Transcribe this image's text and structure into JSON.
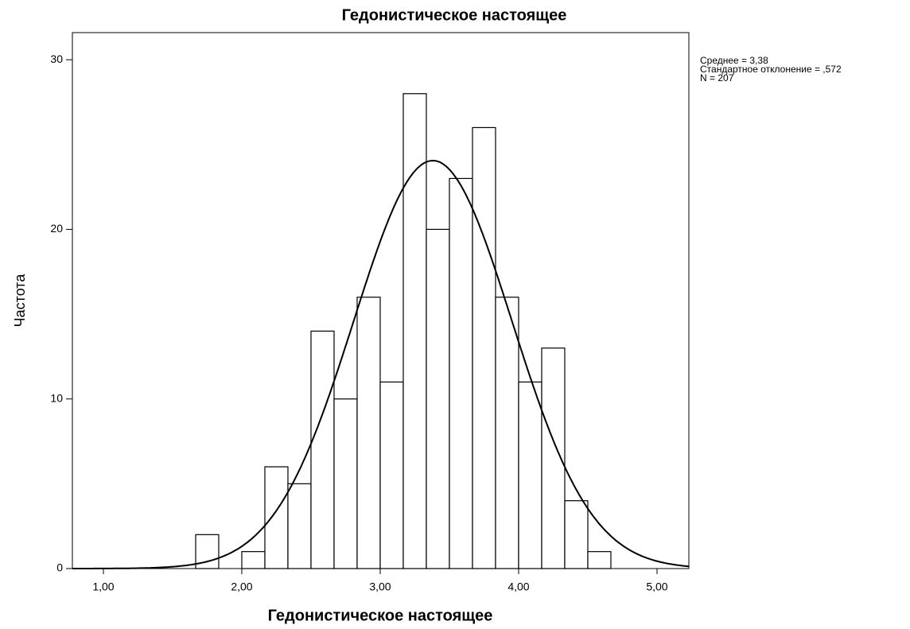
{
  "chart_data": {
    "type": "histogram",
    "title": "Гедонистическое настоящее",
    "x_label": "Гедонистическое настоящее",
    "y_label": "Частота",
    "bins": [
      1.6667,
      1.8333,
      2.0,
      2.1667,
      2.3333,
      2.5,
      2.6667,
      2.8333,
      3.0,
      3.1667,
      3.3333,
      3.5,
      3.6667,
      3.8333,
      4.0,
      4.1667,
      4.3333,
      4.5,
      4.6667
    ],
    "values": [
      2,
      0,
      1,
      6,
      5,
      14,
      10,
      16,
      11,
      28,
      20,
      23,
      26,
      16,
      11,
      13,
      4,
      1
    ],
    "color": "#ffffff",
    "edge_color": "#000000",
    "xlim": [
      0.776,
      5.23
    ],
    "ylim": [
      0,
      31.6
    ],
    "xticks": [
      {
        "value": 1,
        "label": "1,00"
      },
      {
        "value": 2,
        "label": "2,00"
      },
      {
        "value": 3,
        "label": "3,00"
      },
      {
        "value": 4,
        "label": "4,00"
      },
      {
        "value": 5,
        "label": "5,00"
      }
    ],
    "yticks": [
      0,
      10,
      20,
      30
    ],
    "grid": false,
    "annotations": [
      "Среднее = 3,38",
      "Стандартное отклонение = ,572",
      "N = 207"
    ],
    "normal_curve": {
      "mean": 3.38,
      "sd": 0.572,
      "n": 207,
      "color": "#000000"
    }
  }
}
